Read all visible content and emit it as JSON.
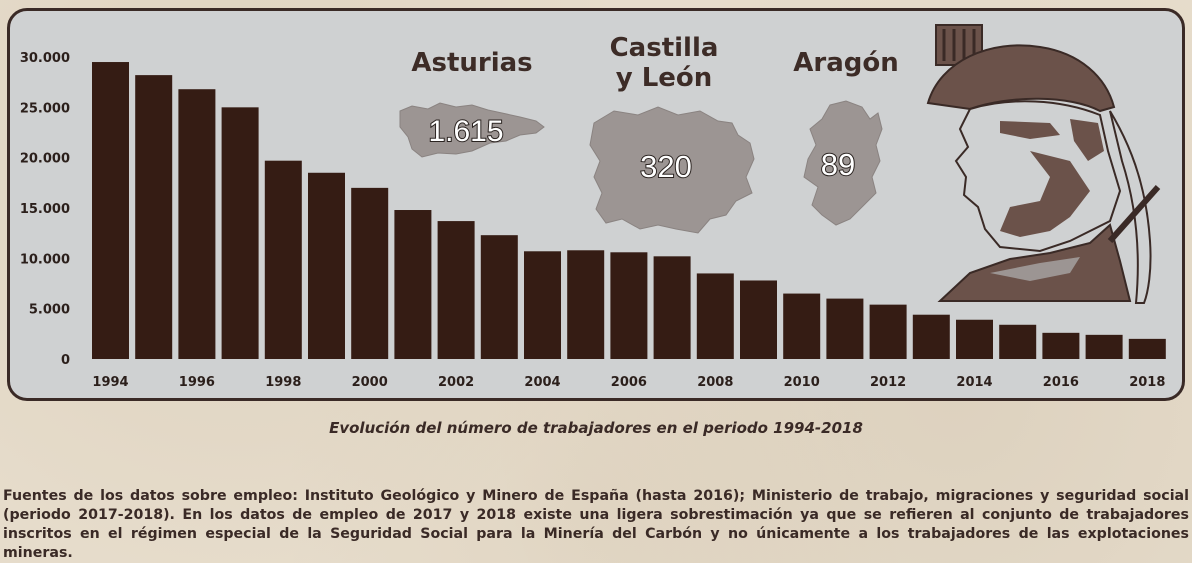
{
  "chart_data": {
    "type": "bar",
    "x": [
      1994,
      1995,
      1996,
      1997,
      1998,
      1999,
      2000,
      2001,
      2002,
      2003,
      2004,
      2005,
      2006,
      2007,
      2008,
      2009,
      2010,
      2011,
      2012,
      2013,
      2014,
      2015,
      2016,
      2017,
      2018
    ],
    "values": [
      29500,
      28200,
      26800,
      25000,
      19700,
      18500,
      17000,
      14800,
      13700,
      12300,
      10700,
      10800,
      10600,
      10200,
      8500,
      7800,
      6500,
      6000,
      5400,
      4400,
      3900,
      3400,
      2600,
      2400,
      2000
    ],
    "x_tick_labels": [
      "1994",
      "1996",
      "1998",
      "2000",
      "2002",
      "2004",
      "2006",
      "2008",
      "2010",
      "2012",
      "2014",
      "2016",
      "2018"
    ],
    "y_ticks": [
      0,
      5000,
      10000,
      15000,
      20000,
      25000,
      30000
    ],
    "y_tick_labels": [
      "0",
      "5.000",
      "10.000",
      "15.000",
      "20.000",
      "25.000",
      "30.000"
    ],
    "ylim": [
      0,
      30000
    ],
    "grid": false,
    "bar_color": "#351c14",
    "title": "",
    "xlabel": "",
    "ylabel": ""
  },
  "regions": [
    {
      "name": "Asturias",
      "value": "1.615"
    },
    {
      "name_line1": "Castilla",
      "name_line2": "y León",
      "value": "320"
    },
    {
      "name": "Aragón",
      "value": "89"
    }
  ],
  "colors": {
    "panel_bg": "#cfd1d2",
    "panel_border": "#3a2a26",
    "map_fill": "#9c9593",
    "text_dark": "#3a2a26",
    "page_bg": "#e6dccb"
  },
  "illustration": "miner-portrait-icon",
  "caption": "Evolución del número de trabajadores en el periodo 1994-2018",
  "sources": "Fuentes de los datos sobre empleo: Instituto Geológico y Minero de España (hasta 2016); Ministerio de trabajo, migraciones y seguridad social (periodo 2017-2018). En los datos de empleo de 2017 y 2018 existe una ligera sobrestimación ya que se refieren al conjunto de trabajadores inscritos en el régimen especial de la Seguridad Social para la Minería del Carbón y no únicamente a los trabajadores de las explotaciones mineras."
}
